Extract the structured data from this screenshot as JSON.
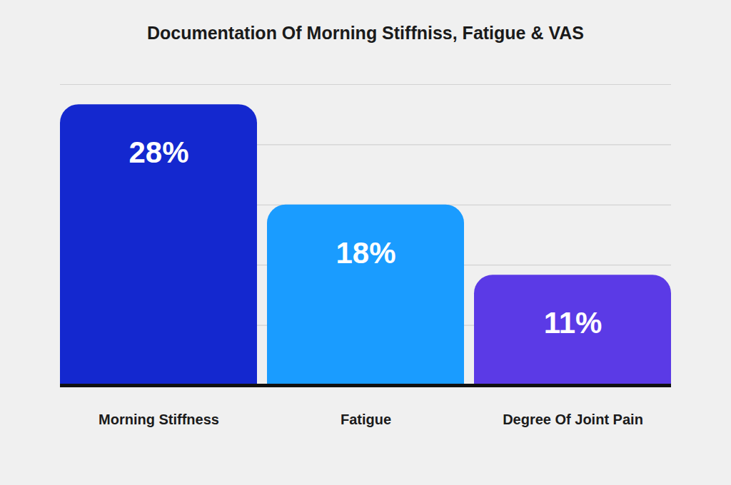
{
  "chart_data": {
    "type": "bar",
    "title": "Documentation Of Morning Stiffniss, Fatigue & VAS",
    "categories": [
      "Morning Stiffness",
      "Fatigue",
      "Degree Of Joint Pain"
    ],
    "values": [
      28,
      18,
      11
    ],
    "value_labels": [
      "28%",
      "18%",
      "11%"
    ],
    "colors": [
      "#1428cf",
      "#1a9cff",
      "#5b3ae6"
    ],
    "ylim": [
      0,
      30
    ],
    "yticks": [
      0,
      6,
      12,
      18,
      24,
      30
    ],
    "grid": true,
    "data_labels": true,
    "tick_labels": "x"
  }
}
